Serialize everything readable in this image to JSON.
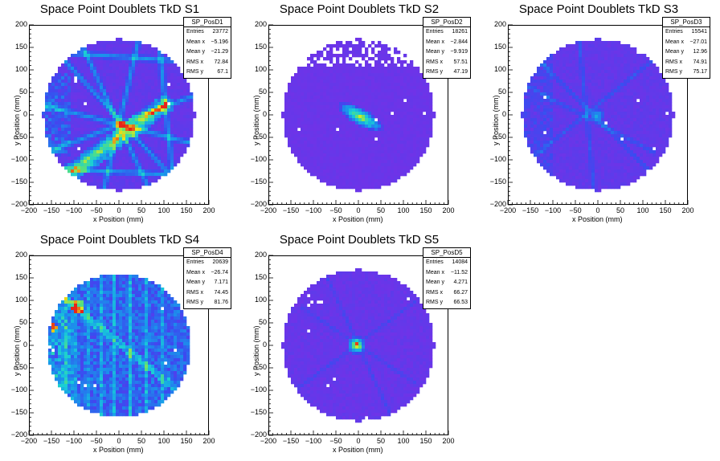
{
  "chart_data": [
    {
      "type": "heatmap",
      "title": "Space Point Doublets TkD S1",
      "xlabel": "x Position (mm)",
      "ylabel": "y Position (mm)",
      "xlim": [
        -200,
        200
      ],
      "ylim": [
        -200,
        200
      ],
      "xticks": [
        "−200",
        "−150",
        "−100",
        "−50",
        "0",
        "50",
        "100",
        "150",
        "200"
      ],
      "yticks": [
        "200",
        "150",
        "100",
        "50",
        "0",
        "−50",
        "−100",
        "−150",
        "−200"
      ],
      "pattern": "s1",
      "stats": {
        "name": "SP_PosD1",
        "rows": [
          [
            "Entries",
            "23772"
          ],
          [
            "Mean x",
            "−5.196"
          ],
          [
            "Mean y",
            "−21.29"
          ],
          [
            "RMS x",
            "72.84"
          ],
          [
            "RMS y",
            "67.1"
          ]
        ]
      }
    },
    {
      "type": "heatmap",
      "title": "Space Point Doublets TkD S2",
      "xlabel": "x Position (mm)",
      "ylabel": "y Position (mm)",
      "xlim": [
        -200,
        200
      ],
      "ylim": [
        -200,
        200
      ],
      "xticks": [
        "−200",
        "−150",
        "−100",
        "−50",
        "0",
        "50",
        "100",
        "150",
        "200"
      ],
      "yticks": [
        "200",
        "150",
        "100",
        "50",
        "0",
        "−50",
        "−100",
        "−150",
        "−200"
      ],
      "pattern": "s2",
      "stats": {
        "name": "SP_PosD2",
        "rows": [
          [
            "Entries",
            "18261"
          ],
          [
            "Mean x",
            "−2.844"
          ],
          [
            "Mean y",
            "−9.919"
          ],
          [
            "RMS x",
            "57.51"
          ],
          [
            "RMS y",
            "47.19"
          ]
        ]
      }
    },
    {
      "type": "heatmap",
      "title": "Space Point Doublets TkD S3",
      "xlabel": "x Position (mm)",
      "ylabel": "y Position (mm)",
      "xlim": [
        -200,
        200
      ],
      "ylim": [
        -200,
        200
      ],
      "xticks": [
        "−200",
        "−150",
        "−100",
        "−50",
        "0",
        "50",
        "100",
        "150",
        "200"
      ],
      "yticks": [
        "200",
        "150",
        "100",
        "50",
        "0",
        "−50",
        "−100",
        "−150",
        "−200"
      ],
      "pattern": "s3",
      "stats": {
        "name": "SP_PosD3",
        "rows": [
          [
            "Entries",
            "15541"
          ],
          [
            "Mean x",
            "−27.01"
          ],
          [
            "Mean y",
            "12.96"
          ],
          [
            "RMS x",
            "74.91"
          ],
          [
            "RMS y",
            "75.17"
          ]
        ]
      }
    },
    {
      "type": "heatmap",
      "title": "Space Point Doublets TkD S4",
      "xlabel": "x Position (mm)",
      "ylabel": "y Position (mm)",
      "xlim": [
        -200,
        200
      ],
      "ylim": [
        -200,
        200
      ],
      "xticks": [
        "−200",
        "−150",
        "−100",
        "−50",
        "0",
        "50",
        "100",
        "150",
        "200"
      ],
      "yticks": [
        "200",
        "150",
        "100",
        "50",
        "0",
        "−50",
        "−100",
        "−150",
        "−200"
      ],
      "pattern": "s4",
      "stats": {
        "name": "SP_PosD4",
        "rows": [
          [
            "Entries",
            "20639"
          ],
          [
            "Mean x",
            "−26.74"
          ],
          [
            "Mean y",
            "7.171"
          ],
          [
            "RMS x",
            "74.45"
          ],
          [
            "RMS y",
            "81.76"
          ]
        ]
      }
    },
    {
      "type": "heatmap",
      "title": "Space Point Doublets TkD S5",
      "xlabel": "x Position (mm)",
      "ylabel": "y Position (mm)",
      "xlim": [
        -200,
        200
      ],
      "ylim": [
        -200,
        200
      ],
      "xticks": [
        "−200",
        "−150",
        "−100",
        "−50",
        "0",
        "50",
        "100",
        "150",
        "200"
      ],
      "yticks": [
        "200",
        "150",
        "100",
        "50",
        "0",
        "−50",
        "−100",
        "−150",
        "−200"
      ],
      "pattern": "s5",
      "stats": {
        "name": "SP_PosD5",
        "rows": [
          [
            "Entries",
            "14084"
          ],
          [
            "Mean x",
            "−11.52"
          ],
          [
            "Mean y",
            "4.271"
          ],
          [
            "RMS x",
            "66.27"
          ],
          [
            "RMS y",
            "66.53"
          ]
        ]
      }
    }
  ],
  "colors": {
    "background": "#7a2ee6",
    "low": "#3a4bf0",
    "mid": "#19c9e0",
    "high": "#e8e81a",
    "peak": "#e82418"
  }
}
